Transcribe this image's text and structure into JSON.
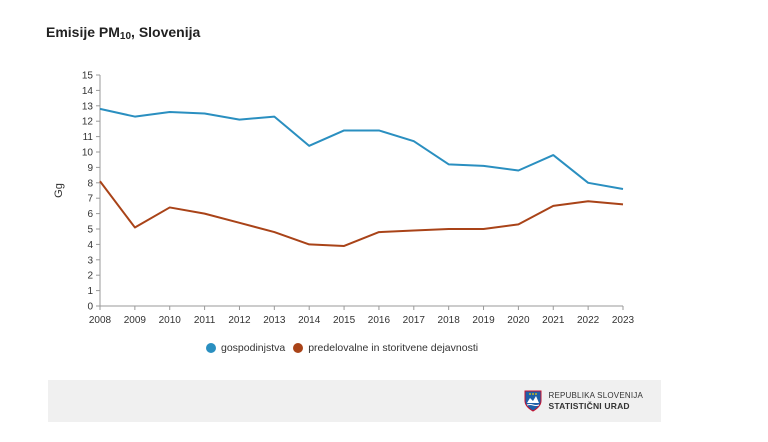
{
  "chart_data": {
    "type": "line",
    "title_prefix": "Emisije PM",
    "title_sub": "10",
    "title_suffix": ", Slovenija",
    "xlabel": "",
    "ylabel": "Gg",
    "ylim": [
      0,
      15
    ],
    "y_ticks": [
      0,
      1,
      2,
      3,
      4,
      5,
      6,
      7,
      8,
      9,
      10,
      11,
      12,
      13,
      14,
      15
    ],
    "x": [
      "2008",
      "2009",
      "2010",
      "2011",
      "2012",
      "2013",
      "2014",
      "2015",
      "2016",
      "2017",
      "2018",
      "2019",
      "2020",
      "2021",
      "2022",
      "2023"
    ],
    "series": [
      {
        "name": "gospodinjstva",
        "color": "#2a8fc0",
        "values": [
          12.8,
          12.3,
          12.6,
          12.5,
          12.1,
          12.3,
          10.4,
          11.4,
          11.4,
          10.7,
          9.2,
          9.1,
          8.8,
          9.8,
          8.0,
          7.6
        ]
      },
      {
        "name": "predelovalne in storitvene dejavnosti",
        "color": "#a94318",
        "values": [
          8.1,
          5.1,
          6.4,
          6.0,
          5.4,
          4.8,
          4.0,
          3.9,
          4.8,
          4.9,
          5.0,
          5.0,
          5.3,
          6.5,
          6.8,
          6.6
        ]
      }
    ]
  },
  "footer": {
    "org_line1": "REPUBLIKA SLOVENIJA",
    "org_line2": "STATISTIČNI URAD",
    "logo_icon": "slovenia-coat-of-arms-icon",
    "background": "#f0f0f0"
  }
}
